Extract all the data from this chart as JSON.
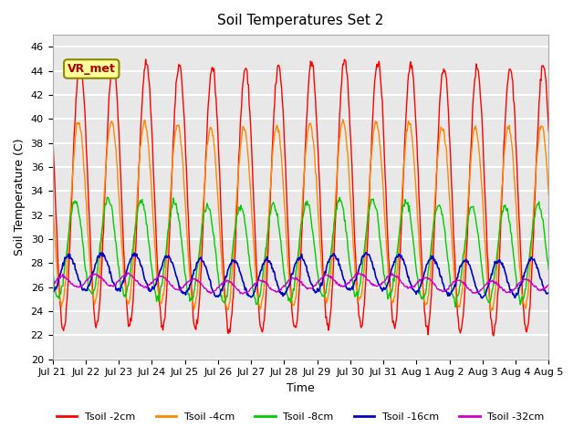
{
  "title": "Soil Temperatures Set 2",
  "xlabel": "Time",
  "ylabel": "Soil Temperature (C)",
  "ylim": [
    20,
    47
  ],
  "yticks": [
    20,
    22,
    24,
    26,
    28,
    30,
    32,
    34,
    36,
    38,
    40,
    42,
    44,
    46
  ],
  "annotation": "VR_met",
  "bg_color": "#e8e8e8",
  "series_colors": [
    "#ff0000",
    "#ff8800",
    "#00cc00",
    "#0000cc",
    "#cc00cc"
  ],
  "series_labels": [
    "Tsoil -2cm",
    "Tsoil -4cm",
    "Tsoil -8cm",
    "Tsoil -16cm",
    "Tsoil -32cm"
  ],
  "x_tick_labels": [
    "Jul 21",
    "Jul 22",
    "Jul 23",
    "Jul 24",
    "Jul 25",
    "Jul 26",
    "Jul 27",
    "Jul 28",
    "Jul 29",
    "Jul 30",
    "Jul 31",
    "Aug 1",
    "Aug 2",
    "Aug 3",
    "Aug 4",
    "Aug 5"
  ],
  "n_days": 15,
  "n_points_per_day": 48,
  "series_params": [
    {
      "mean": 33.5,
      "amplitude": 11.0,
      "phase_lag": 0.0,
      "noise_std": 0.2
    },
    {
      "mean": 32.0,
      "amplitude": 7.5,
      "phase_lag": 0.05,
      "noise_std": 0.15
    },
    {
      "mean": 29.0,
      "amplitude": 4.0,
      "phase_lag": 0.15,
      "noise_std": 0.15
    },
    {
      "mean": 27.0,
      "amplitude": 1.5,
      "phase_lag": 0.35,
      "noise_std": 0.1
    },
    {
      "mean": 26.3,
      "amplitude": 0.5,
      "phase_lag": 0.55,
      "noise_std": 0.05
    }
  ]
}
